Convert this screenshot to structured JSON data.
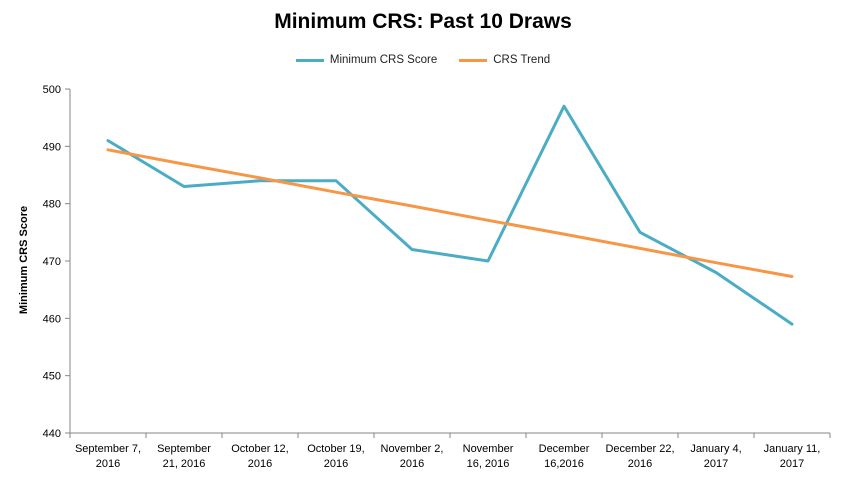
{
  "chart_data": {
    "type": "line",
    "title": "Minimum CRS: Past 10 Draws",
    "xlabel": "",
    "ylabel": "Minimum CRS Score",
    "ylim": [
      440,
      500
    ],
    "yticks": [
      440,
      450,
      460,
      470,
      480,
      490,
      500
    ],
    "grid": false,
    "legend_position": "top",
    "categories": [
      [
        "September 7,",
        "2016"
      ],
      [
        "September",
        "21, 2016"
      ],
      [
        "October 12,",
        "2016"
      ],
      [
        "October 19,",
        "2016"
      ],
      [
        "November 2,",
        "2016"
      ],
      [
        "November",
        "16, 2016"
      ],
      [
        "December",
        "16,2016"
      ],
      [
        "December 22,",
        "2016"
      ],
      [
        "January 4,",
        "2017"
      ],
      [
        "January 11,",
        "2017"
      ]
    ],
    "series": [
      {
        "name": "Minimum CRS Score",
        "color": "#4bacc6",
        "values": [
          491,
          483,
          484,
          484,
          472,
          470,
          497,
          475,
          468,
          459
        ]
      },
      {
        "name": "CRS Trend",
        "color": "#f79646",
        "values": [
          489.4,
          486.9,
          484.5,
          482.0,
          479.6,
          477.1,
          474.7,
          472.2,
          469.7,
          467.3
        ]
      }
    ]
  }
}
